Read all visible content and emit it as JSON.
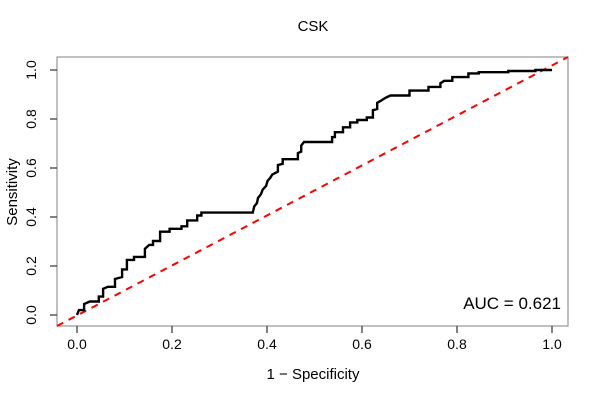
{
  "title": "CSK",
  "x_axis": {
    "label": "1 − Specificity",
    "tick_labels": [
      "0.0",
      "0.2",
      "0.4",
      "0.6",
      "0.8",
      "1.0"
    ],
    "tick_values": [
      0,
      0.2,
      0.4,
      0.6,
      0.8,
      1.0
    ]
  },
  "y_axis": {
    "label": "Sensitivity",
    "tick_labels": [
      "0.0",
      "0.2",
      "0.4",
      "0.6",
      "0.8",
      "1.0"
    ],
    "tick_values": [
      0,
      0.2,
      0.4,
      0.6,
      0.8,
      1.0
    ]
  },
  "annotation": {
    "auc_label": "AUC = 0.621"
  },
  "colors": {
    "curve": "#000000",
    "diagonal": "#ff0000",
    "box": "#808080",
    "tick": "#404040",
    "background": "#ffffff"
  },
  "chart_data": {
    "type": "line",
    "title": "CSK",
    "xlabel": "1 − Specificity",
    "ylabel": "Sensitivity",
    "xlim": [
      0,
      1
    ],
    "ylim": [
      0,
      1
    ],
    "grid": false,
    "legend": "none",
    "auc": 0.621,
    "series": [
      {
        "name": "ROC curve",
        "style": "solid-step",
        "color": "#000000",
        "points": [
          [
            0,
            0
          ],
          [
            0.004,
            0.02
          ],
          [
            0.015,
            0.02
          ],
          [
            0.015,
            0.045
          ],
          [
            0.027,
            0.055
          ],
          [
            0.046,
            0.055
          ],
          [
            0.046,
            0.075
          ],
          [
            0.055,
            0.075
          ],
          [
            0.055,
            0.107
          ],
          [
            0.065,
            0.115
          ],
          [
            0.08,
            0.115
          ],
          [
            0.08,
            0.147
          ],
          [
            0.095,
            0.155
          ],
          [
            0.095,
            0.186
          ],
          [
            0.105,
            0.186
          ],
          [
            0.105,
            0.225
          ],
          [
            0.12,
            0.225
          ],
          [
            0.12,
            0.237
          ],
          [
            0.143,
            0.237
          ],
          [
            0.143,
            0.27
          ],
          [
            0.152,
            0.286
          ],
          [
            0.16,
            0.286
          ],
          [
            0.16,
            0.302
          ],
          [
            0.175,
            0.302
          ],
          [
            0.175,
            0.34
          ],
          [
            0.195,
            0.34
          ],
          [
            0.195,
            0.352
          ],
          [
            0.22,
            0.352
          ],
          [
            0.22,
            0.362
          ],
          [
            0.232,
            0.362
          ],
          [
            0.232,
            0.386
          ],
          [
            0.253,
            0.386
          ],
          [
            0.253,
            0.406
          ],
          [
            0.262,
            0.406
          ],
          [
            0.262,
            0.418
          ],
          [
            0.37,
            0.418
          ],
          [
            0.373,
            0.443
          ],
          [
            0.379,
            0.457
          ],
          [
            0.381,
            0.478
          ],
          [
            0.387,
            0.492
          ],
          [
            0.391,
            0.512
          ],
          [
            0.398,
            0.527
          ],
          [
            0.401,
            0.547
          ],
          [
            0.407,
            0.56
          ],
          [
            0.411,
            0.573
          ],
          [
            0.423,
            0.585
          ],
          [
            0.423,
            0.612
          ],
          [
            0.433,
            0.617
          ],
          [
            0.433,
            0.636
          ],
          [
            0.465,
            0.636
          ],
          [
            0.465,
            0.661
          ],
          [
            0.472,
            0.667
          ],
          [
            0.472,
            0.691
          ],
          [
            0.478,
            0.706
          ],
          [
            0.537,
            0.706
          ],
          [
            0.537,
            0.726
          ],
          [
            0.543,
            0.726
          ],
          [
            0.543,
            0.746
          ],
          [
            0.56,
            0.746
          ],
          [
            0.56,
            0.766
          ],
          [
            0.575,
            0.766
          ],
          [
            0.575,
            0.786
          ],
          [
            0.59,
            0.786
          ],
          [
            0.59,
            0.796
          ],
          [
            0.61,
            0.796
          ],
          [
            0.61,
            0.806
          ],
          [
            0.623,
            0.806
          ],
          [
            0.623,
            0.836
          ],
          [
            0.632,
            0.841
          ],
          [
            0.632,
            0.866
          ],
          [
            0.641,
            0.876
          ],
          [
            0.649,
            0.886
          ],
          [
            0.66,
            0.896
          ],
          [
            0.7,
            0.896
          ],
          [
            0.7,
            0.916
          ],
          [
            0.74,
            0.916
          ],
          [
            0.74,
            0.931
          ],
          [
            0.765,
            0.931
          ],
          [
            0.765,
            0.946
          ],
          [
            0.773,
            0.956
          ],
          [
            0.79,
            0.956
          ],
          [
            0.79,
            0.971
          ],
          [
            0.824,
            0.971
          ],
          [
            0.824,
            0.986
          ],
          [
            0.846,
            0.986
          ],
          [
            0.846,
            0.991
          ],
          [
            0.908,
            0.991
          ],
          [
            0.908,
            0.996
          ],
          [
            0.965,
            0.996
          ],
          [
            0.965,
            1
          ],
          [
            1,
            1
          ]
        ]
      },
      {
        "name": "chance diagonal",
        "style": "dashed",
        "color": "#ff0000",
        "points": [
          [
            0,
            0
          ],
          [
            1,
            1
          ]
        ]
      }
    ]
  }
}
